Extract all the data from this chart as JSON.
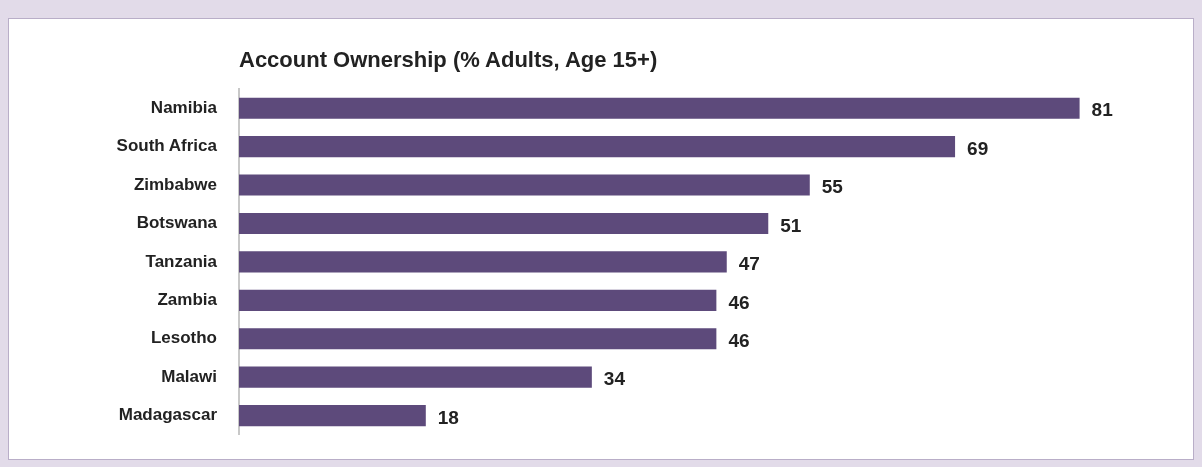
{
  "chart_data": {
    "type": "bar",
    "orientation": "horizontal",
    "title": "Account Ownership (% Adults, Age 15+)",
    "categories": [
      "Namibia",
      "South Africa",
      "Zimbabwe",
      "Botswana",
      "Tanzania",
      "Zambia",
      "Lesotho",
      "Malawi",
      "Madagascar"
    ],
    "values": [
      81,
      69,
      55,
      51,
      47,
      46,
      46,
      34,
      18
    ],
    "color": "#5d4a7b",
    "data_labels": true
  }
}
